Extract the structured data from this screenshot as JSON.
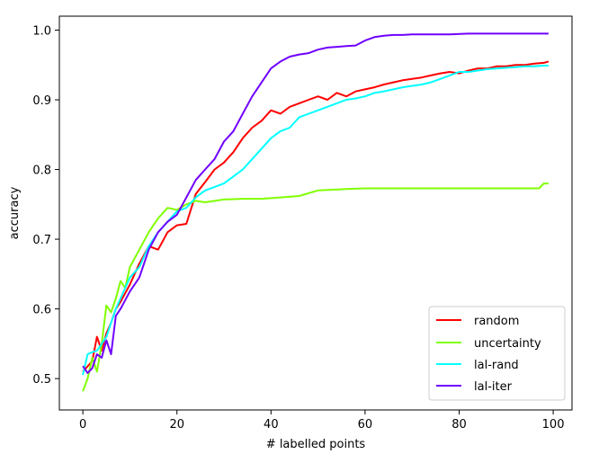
{
  "chart_data": {
    "type": "line",
    "title": "",
    "xlabel": "# labelled points",
    "ylabel": "accuracy",
    "xlim": [
      -5,
      104
    ],
    "ylim": [
      0.455,
      1.02
    ],
    "xticks": [
      0,
      20,
      40,
      60,
      80,
      100
    ],
    "yticks": [
      0.5,
      0.6,
      0.7,
      0.8,
      0.9,
      1.0
    ],
    "ytick_labels": [
      "0.5",
      "0.6",
      "0.7",
      "0.8",
      "0.9",
      "1.0"
    ],
    "grid": false,
    "legend_position": "lower-right",
    "series": [
      {
        "name": "random",
        "color": "#ff0000",
        "x": [
          0,
          2,
          3,
          4,
          5,
          6,
          7,
          8,
          10,
          12,
          14,
          16,
          18,
          20,
          22,
          24,
          26,
          28,
          30,
          32,
          34,
          36,
          38,
          40,
          42,
          44,
          46,
          48,
          50,
          52,
          54,
          56,
          58,
          60,
          62,
          64,
          66,
          68,
          70,
          72,
          74,
          76,
          78,
          80,
          82,
          84,
          86,
          88,
          90,
          92,
          94,
          96,
          98,
          99
        ],
        "y": [
          0.51,
          0.525,
          0.56,
          0.54,
          0.565,
          0.58,
          0.6,
          0.61,
          0.635,
          0.665,
          0.69,
          0.685,
          0.71,
          0.72,
          0.722,
          0.765,
          0.782,
          0.8,
          0.81,
          0.825,
          0.845,
          0.86,
          0.87,
          0.885,
          0.88,
          0.89,
          0.895,
          0.9,
          0.905,
          0.9,
          0.91,
          0.905,
          0.912,
          0.915,
          0.918,
          0.922,
          0.925,
          0.928,
          0.93,
          0.932,
          0.935,
          0.938,
          0.94,
          0.938,
          0.942,
          0.945,
          0.945,
          0.948,
          0.948,
          0.95,
          0.95,
          0.952,
          0.953,
          0.955
        ]
      },
      {
        "name": "uncertainty",
        "color": "#80ff00",
        "x": [
          0,
          1,
          2,
          3,
          4,
          5,
          6,
          7,
          8,
          9,
          10,
          12,
          14,
          16,
          18,
          20,
          22,
          24,
          26,
          30,
          34,
          38,
          42,
          46,
          50,
          56,
          60,
          70,
          80,
          90,
          97,
          98,
          99
        ],
        "y": [
          0.482,
          0.5,
          0.53,
          0.51,
          0.55,
          0.605,
          0.595,
          0.615,
          0.64,
          0.63,
          0.66,
          0.685,
          0.71,
          0.73,
          0.745,
          0.742,
          0.75,
          0.755,
          0.753,
          0.757,
          0.758,
          0.758,
          0.76,
          0.762,
          0.77,
          0.772,
          0.773,
          0.773,
          0.773,
          0.773,
          0.773,
          0.78,
          0.78
        ]
      },
      {
        "name": "lal-rand",
        "color": "#00ffff",
        "x": [
          0,
          1,
          2,
          3,
          4,
          5,
          6,
          7,
          8,
          10,
          12,
          14,
          16,
          18,
          20,
          22,
          24,
          26,
          28,
          30,
          32,
          34,
          36,
          38,
          40,
          42,
          44,
          46,
          48,
          50,
          52,
          54,
          56,
          58,
          60,
          62,
          64,
          66,
          68,
          70,
          72,
          74,
          76,
          78,
          80,
          82,
          84,
          86,
          88,
          90,
          92,
          94,
          96,
          98,
          99
        ],
        "y": [
          0.505,
          0.535,
          0.538,
          0.54,
          0.55,
          0.56,
          0.58,
          0.6,
          0.615,
          0.645,
          0.66,
          0.69,
          0.71,
          0.725,
          0.74,
          0.745,
          0.76,
          0.77,
          0.775,
          0.78,
          0.79,
          0.8,
          0.815,
          0.83,
          0.845,
          0.855,
          0.86,
          0.875,
          0.88,
          0.885,
          0.89,
          0.895,
          0.9,
          0.902,
          0.905,
          0.91,
          0.912,
          0.915,
          0.918,
          0.92,
          0.922,
          0.925,
          0.93,
          0.935,
          0.94,
          0.94,
          0.942,
          0.944,
          0.945,
          0.946,
          0.947,
          0.948,
          0.948,
          0.949,
          0.949
        ]
      },
      {
        "name": "lal-iter",
        "color": "#7000ff",
        "x": [
          0,
          1,
          2,
          3,
          4,
          5,
          6,
          7,
          8,
          10,
          12,
          14,
          16,
          18,
          20,
          22,
          24,
          26,
          28,
          30,
          32,
          34,
          36,
          38,
          40,
          42,
          44,
          46,
          48,
          50,
          52,
          54,
          56,
          58,
          60,
          62,
          64,
          66,
          68,
          70,
          74,
          78,
          82,
          86,
          90,
          94,
          98,
          99
        ],
        "y": [
          0.518,
          0.508,
          0.515,
          0.535,
          0.53,
          0.555,
          0.535,
          0.59,
          0.6,
          0.625,
          0.645,
          0.685,
          0.71,
          0.725,
          0.735,
          0.76,
          0.785,
          0.8,
          0.815,
          0.84,
          0.855,
          0.88,
          0.905,
          0.925,
          0.945,
          0.955,
          0.962,
          0.965,
          0.967,
          0.972,
          0.975,
          0.976,
          0.977,
          0.978,
          0.985,
          0.99,
          0.992,
          0.993,
          0.993,
          0.994,
          0.994,
          0.994,
          0.995,
          0.995,
          0.995,
          0.995,
          0.995,
          0.995
        ]
      }
    ]
  }
}
